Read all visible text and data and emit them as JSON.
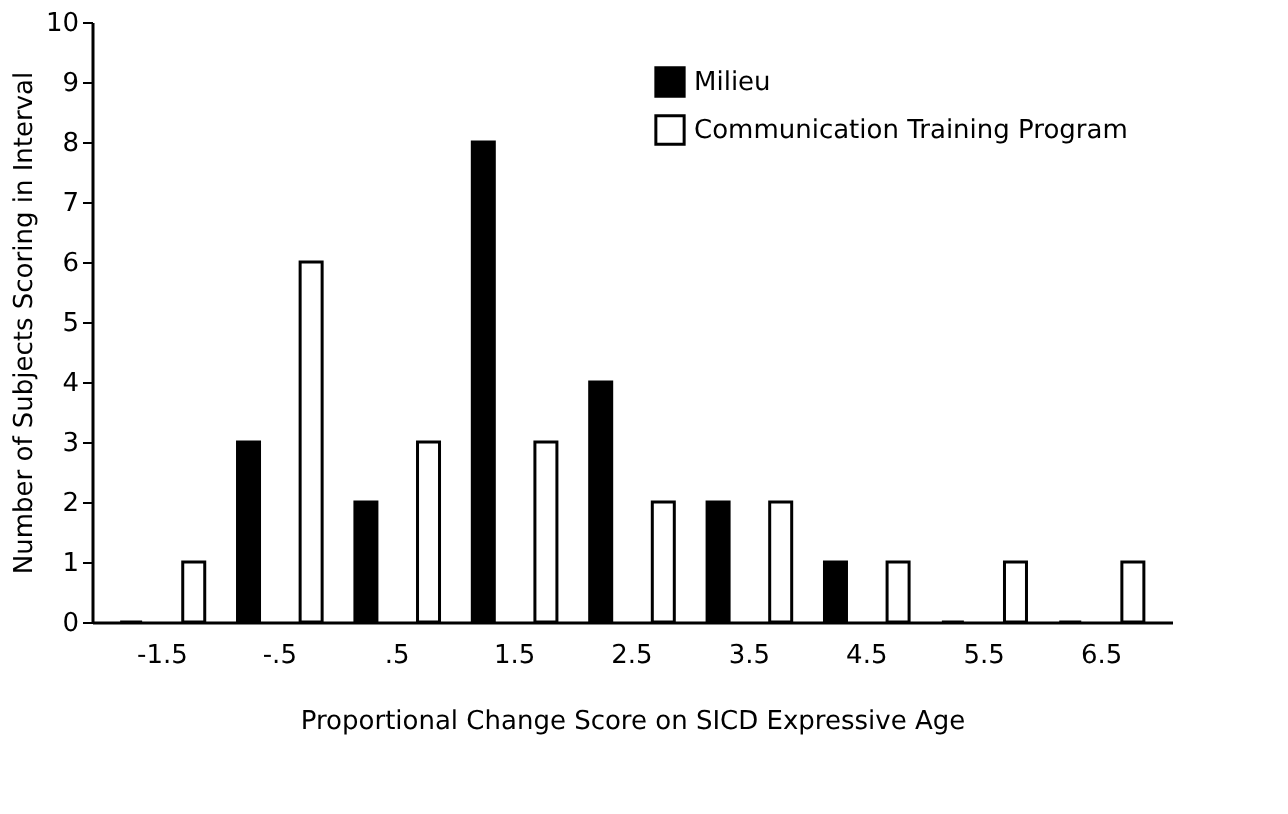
{
  "chart_data": {
    "type": "bar",
    "xlabel": "Proportional Change Score on SICD Expressive Age",
    "ylabel": "Number of Subjects Scoring in Interval",
    "categories": [
      "-1.5",
      "-.5",
      ".5",
      "1.5",
      "2.5",
      "3.5",
      "4.5",
      "5.5",
      "6.5"
    ],
    "series": [
      {
        "name": "Milieu",
        "color": "#000000",
        "values": [
          0,
          3,
          2,
          8,
          4,
          2,
          1,
          0,
          0
        ]
      },
      {
        "name": "Communication Training Program",
        "color": "#ffffff",
        "values": [
          1,
          6,
          3,
          3,
          2,
          2,
          1,
          1,
          1
        ]
      }
    ],
    "ylim": [
      0,
      10
    ],
    "yticks": [
      0,
      1,
      2,
      3,
      4,
      5,
      6,
      7,
      8,
      9,
      10
    ],
    "grid": false,
    "legend": "top right"
  }
}
